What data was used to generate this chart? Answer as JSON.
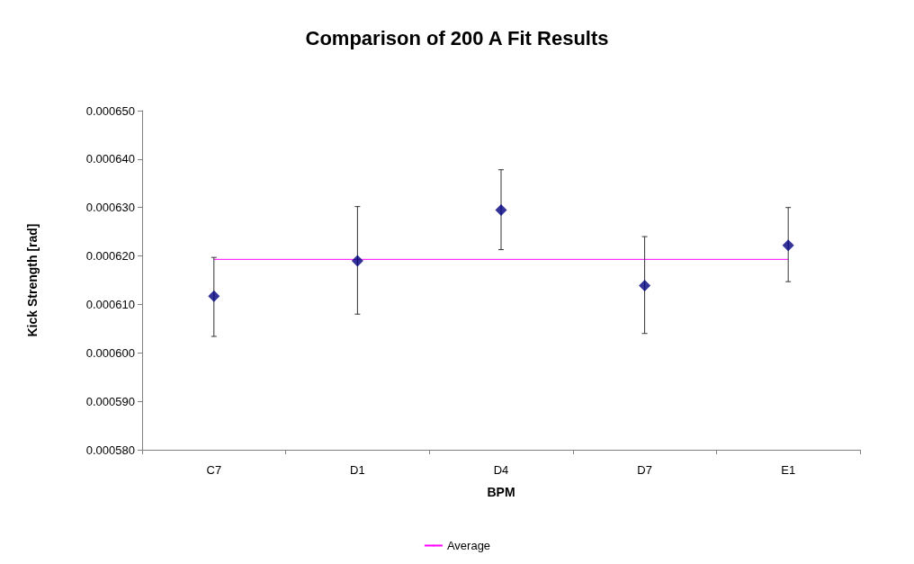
{
  "chart_data": {
    "type": "scatter",
    "title": "Comparison of 200 A Fit Results",
    "xlabel": "BPM",
    "ylabel": "Kick Strength [rad]",
    "categories": [
      "C7",
      "D1",
      "D4",
      "D7",
      "E1"
    ],
    "series": [
      {
        "color": "#000080",
        "marker": "diamond",
        "values": [
          0.0006117,
          0.000619,
          0.0006295,
          0.0006139,
          0.0006222
        ],
        "errors": [
          [
            0.0006034,
            0.0006197
          ],
          [
            0.000608,
            0.0006302
          ],
          [
            0.0006213,
            0.0006378
          ],
          [
            0.000604,
            0.000624
          ],
          [
            0.0006147,
            0.00063
          ]
        ]
      },
      {
        "type": "line",
        "name": "Average",
        "color": "#ff00ff",
        "marker": "none",
        "values": [
          0.0006193,
          0.0006193,
          0.0006193,
          0.0006193,
          0.0006193
        ]
      }
    ],
    "ylim": [
      0.00058,
      0.00065
    ],
    "yticks": [
      {
        "value": 0.00058,
        "label": "0.000580"
      },
      {
        "value": 0.00059,
        "label": "0.000590"
      },
      {
        "value": 0.0006,
        "label": "0.000600"
      },
      {
        "value": 0.00061,
        "label": "0.000610"
      },
      {
        "value": 0.00062,
        "label": "0.000620"
      },
      {
        "value": 0.00063,
        "label": "0.000630"
      },
      {
        "value": 0.00064,
        "label": "0.000640"
      },
      {
        "value": 0.00065,
        "label": "0.000650"
      }
    ],
    "grid": false,
    "legend": "bottom"
  }
}
